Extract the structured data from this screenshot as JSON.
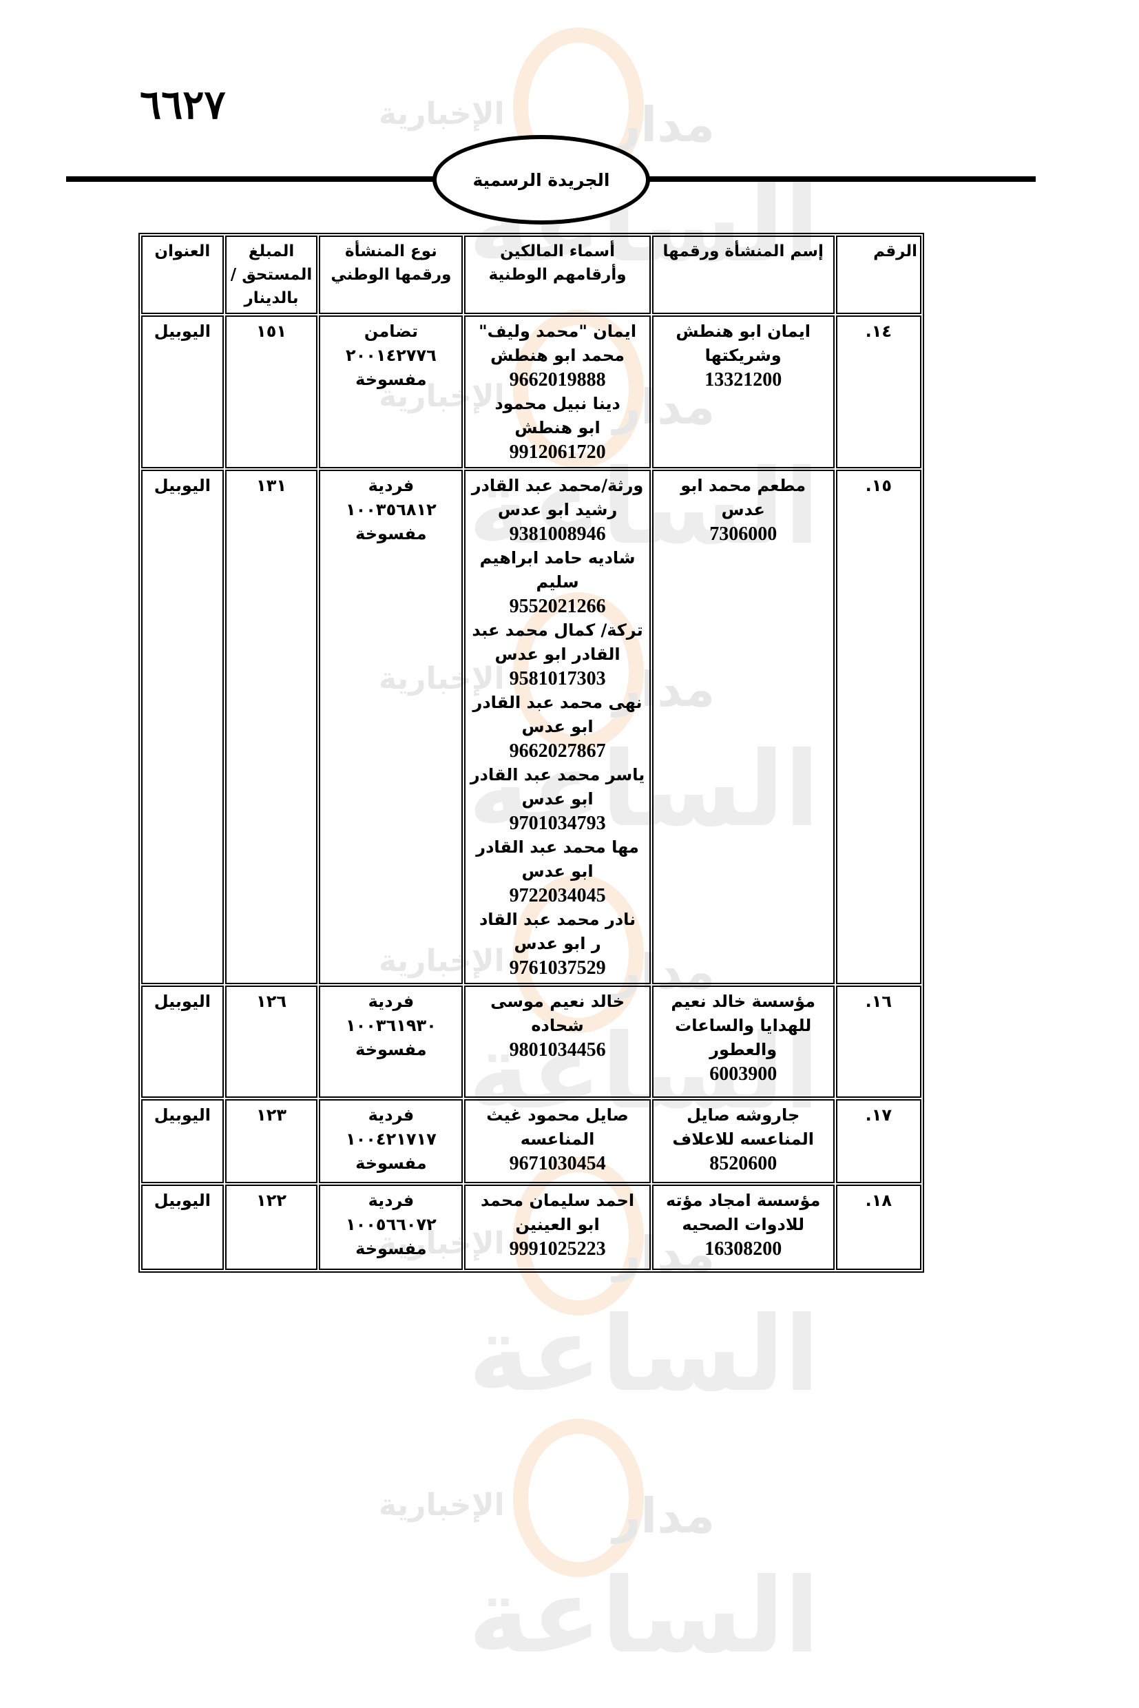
{
  "page_number": "٦٦٢٧",
  "header_title": "الجريدة الرسمية",
  "watermark": "مدار الساعة الإخبارية",
  "table": {
    "headers": [
      "الرقم",
      "إسم المنشأة ورقمها",
      "أسماء المالكين وأرقامهم الوطنية",
      "نوع المنشأة ورقمها الوطني",
      "المبلغ المستحق /بالدينار",
      "العنوان"
    ],
    "rows": [
      {
        "no": "١٤.",
        "name": [
          "ايمان ابو هنطش",
          "وشريكتها",
          "13321200"
        ],
        "owners": [
          "ايمان \"محمد وليف\"",
          "محمد ابو هنطش",
          "9662019888",
          "دينا نبيل محمود",
          "ابو هنطش",
          "9912061720"
        ],
        "type": [
          "تضامن",
          "٢٠٠١٤٢٧٧٦",
          "مفسوخة"
        ],
        "amount": "١٥١",
        "address": "اليوبيل"
      },
      {
        "no": "١٥.",
        "name": [
          "مطعم محمد ابو عدس",
          "7306000"
        ],
        "owners": [
          "ورثة/محمد عبد القادر",
          "رشيد ابو عدس",
          "9381008946",
          "شاديه حامد ابراهيم سليم",
          "9552021266",
          "تركة/ كمال محمد عبد",
          "القادر ابو عدس",
          "9581017303",
          "نهى محمد عبد القادر",
          "ابو عدس",
          "9662027867",
          "ياسر محمد عبد القادر",
          "ابو عدس",
          "9701034793",
          "مها محمد عبد القادر",
          "ابو عدس",
          "9722034045",
          "نادر محمد عبد القاد",
          "ر ابو عدس",
          "9761037529"
        ],
        "type": [
          "فردية",
          "١٠٠٣٥٦٨١٢",
          "مفسوخة"
        ],
        "amount": "١٣١",
        "address": "اليوبيل"
      },
      {
        "no": "١٦.",
        "name": [
          "مؤسسة خالد نعيم",
          "للهدايا والساعات",
          "والعطور",
          "6003900"
        ],
        "owners": [
          "خالد نعيم موسى شحاده",
          "9801034456"
        ],
        "type": [
          "فردية",
          "١٠٠٣٦١٩٣٠",
          "مفسوخة"
        ],
        "amount": "١٢٦",
        "address": "اليوبيل"
      },
      {
        "no": "١٧.",
        "name": [
          "جاروشه صايل",
          "المناعسه للاعلاف",
          "8520600"
        ],
        "owners": [
          "صايل محمود غيث",
          "المناعسه",
          "9671030454"
        ],
        "type": [
          "فردية",
          "١٠٠٤٢١٧١٧",
          "مفسوخة"
        ],
        "amount": "١٢٣",
        "address": "اليوبيل"
      },
      {
        "no": "١٨.",
        "name": [
          "مؤسسة امجاد مؤته",
          "للادوات الصحيه",
          "16308200"
        ],
        "owners": [
          "احمد سليمان محمد",
          "ابو العينين",
          "9991025223"
        ],
        "type": [
          "فردية",
          "١٠٠٥٦٦٠٧٢",
          "مفسوخة"
        ],
        "amount": "١٢٢",
        "address": "اليوبيل"
      }
    ]
  }
}
